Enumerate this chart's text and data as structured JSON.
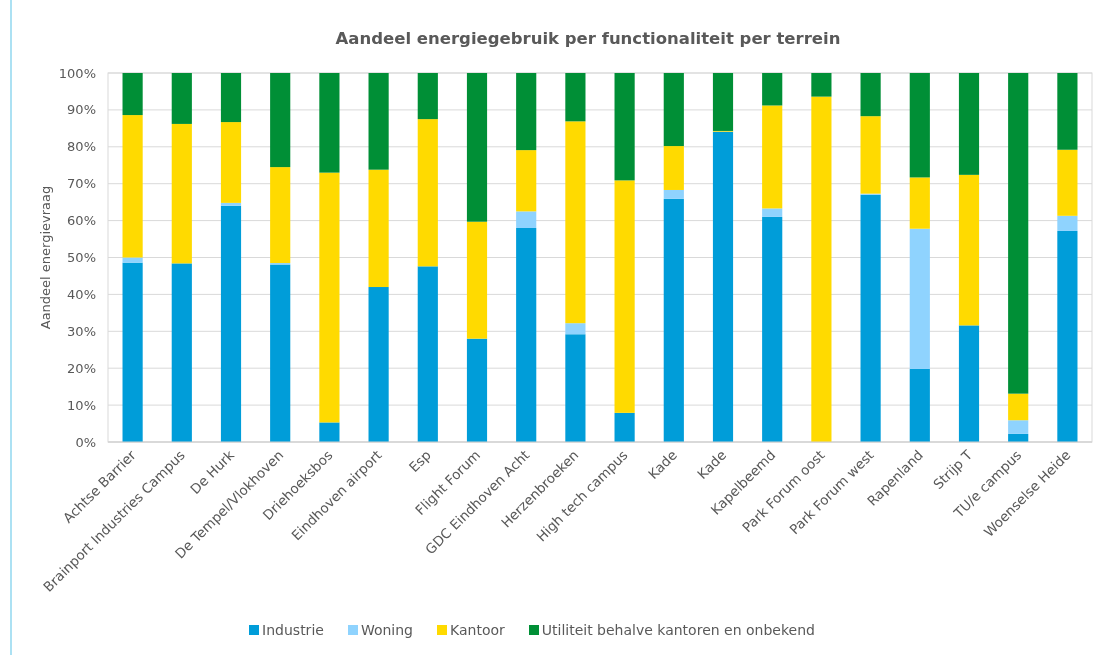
{
  "chart_data": {
    "type": "bar",
    "stacked": true,
    "title": "Aandeel energiegebruik per functionaliteit per terrein",
    "ylabel": "Aandeel energievraag",
    "categories": [
      "Achtse Barrier",
      "Brainport Industries Campus",
      "De Hurk",
      "De Tempel/Vlokhoven",
      "Driehoeksbos",
      "Eindhoven airport",
      "Esp",
      "Flight Forum",
      "GDC Eindhoven Acht",
      "Herzenbroeken",
      "High tech campus",
      "Kade",
      "Kade",
      "Kapelbeemd",
      "Park Forum oost",
      "Park Forum west",
      "Rapenland",
      "Strijp T",
      "TU/e campus",
      "Woenselse Heide"
    ],
    "series": [
      {
        "name": "Industrie",
        "color": "#009dd9",
        "values": [
          48.6,
          48.4,
          64.0,
          48.1,
          5.3,
          42.0,
          47.6,
          28.0,
          58.0,
          29.2,
          7.9,
          65.9,
          84.1,
          61.0,
          0,
          67.0,
          19.8,
          31.6,
          2.2,
          57.2
        ]
      },
      {
        "name": "Woning",
        "color": "#8fd3fe",
        "values": [
          1.4,
          0,
          0.8,
          0.4,
          0,
          0,
          0,
          0,
          4.5,
          3.0,
          0,
          2.4,
          0,
          2.3,
          0,
          0.3,
          38.0,
          0,
          3.7,
          4.1
        ]
      },
      {
        "name": "Kantoor",
        "color": "#ffda00",
        "values": [
          38.6,
          37.8,
          21.9,
          26.0,
          67.7,
          31.8,
          39.9,
          31.7,
          16.6,
          54.7,
          63.0,
          11.9,
          0.2,
          27.9,
          93.6,
          21.0,
          13.9,
          40.8,
          7.2,
          17.9
        ]
      },
      {
        "name": "Utiliteit behalve kantoren en onbekend",
        "color": "#008f36",
        "values": [
          11.4,
          13.8,
          13.3,
          25.5,
          27.0,
          26.2,
          12.5,
          40.3,
          20.9,
          13.1,
          29.1,
          19.8,
          15.7,
          8.8,
          6.4,
          11.7,
          28.3,
          27.6,
          86.9,
          20.8
        ]
      }
    ],
    "ylim": [
      0,
      100
    ],
    "yticks": [
      {
        "value": 0,
        "label": "0%"
      },
      {
        "value": 10,
        "label": "10%"
      },
      {
        "value": 20,
        "label": "20%"
      },
      {
        "value": 30,
        "label": "30%"
      },
      {
        "value": 40,
        "label": "40%"
      },
      {
        "value": 50,
        "label": "50%"
      },
      {
        "value": 60,
        "label": "60%"
      },
      {
        "value": 70,
        "label": "70%"
      },
      {
        "value": 80,
        "label": "80%"
      },
      {
        "value": 90,
        "label": "90%"
      },
      {
        "value": 100,
        "label": "100%"
      }
    ],
    "grid": "y",
    "legend": "bottom"
  }
}
